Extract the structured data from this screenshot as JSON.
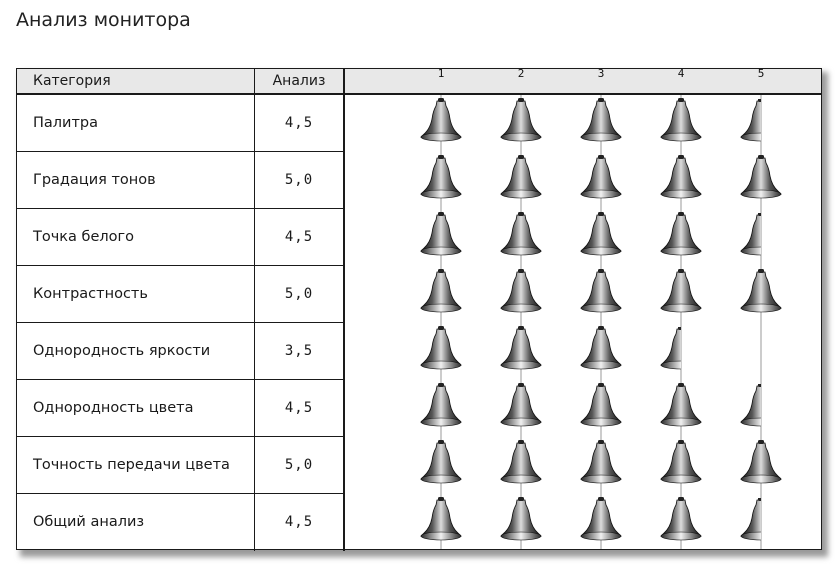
{
  "page": {
    "title": "Анализ монитора"
  },
  "chart_data": {
    "type": "bar",
    "columns": {
      "category": "Категория",
      "value": "Анализ"
    },
    "x_ticks": [
      "1",
      "2",
      "3",
      "4",
      "5"
    ],
    "xlim": [
      0,
      5
    ],
    "categories": [
      "Палитра",
      "Градация тонов",
      "Точка белого",
      "Контрастность",
      "Однородность яркости",
      "Однородность цвета",
      "Точность передачи цвета",
      "Общий анализ"
    ],
    "labels": [
      "4,5",
      "5,0",
      "4,5",
      "5,0",
      "3,5",
      "4,5",
      "5,0",
      "4,5"
    ],
    "values": [
      4.5,
      5.0,
      4.5,
      5.0,
      3.5,
      4.5,
      5.0,
      4.5
    ],
    "marker": "bell-icon",
    "colors": {
      "bell_dark": "#1e1e1e",
      "bell_light": "#d8d8d8",
      "header_bg": "#e8e8e8",
      "grid": "#9a9a9a"
    }
  }
}
